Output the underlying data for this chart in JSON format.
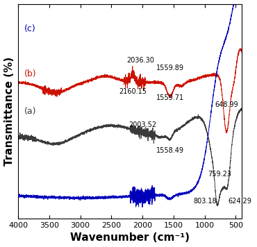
{
  "xlabel": "Wavenumber (cm⁻¹)",
  "ylabel": "Transmittance (%)",
  "xlim": [
    4000,
    400
  ],
  "colors": {
    "a": "#3a3a3a",
    "b": "#cc1100",
    "c": "#0000bb"
  },
  "labels": {
    "a": "(a)",
    "b": "(b)",
    "c": "(c)"
  },
  "xticks": [
    500,
    1000,
    1500,
    2000,
    2500,
    3000,
    3500,
    4000
  ],
  "font_size_labels": 11,
  "font_size_annot": 7.0,
  "font_size_legend": 9
}
